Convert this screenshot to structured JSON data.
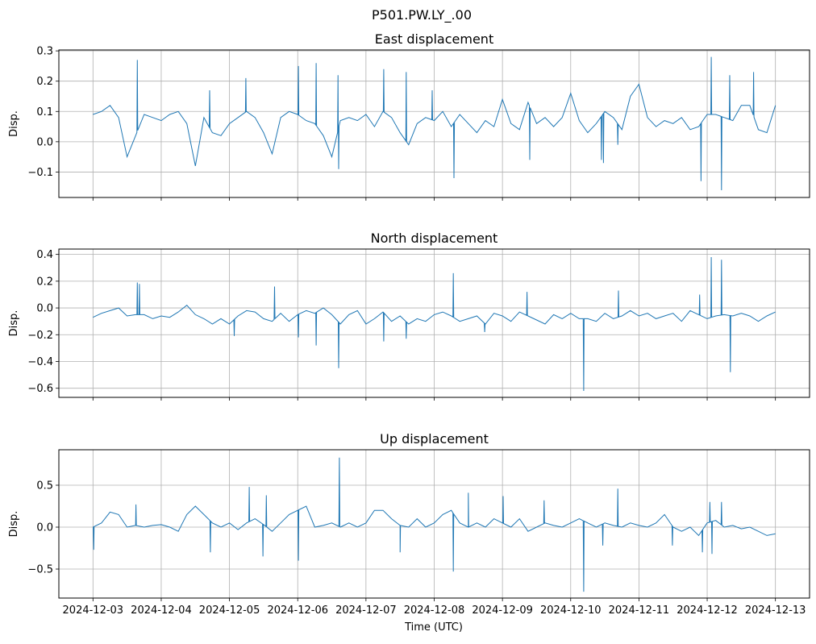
{
  "chart_data": {
    "type": "line",
    "title": "P501.PW.LY_.00",
    "xlabel": "Time (UTC)",
    "x_unit": "days since 2024-12-03 00:00 UTC",
    "xlim": [
      -0.5,
      10.5
    ],
    "x_ticks": [
      0,
      1,
      2,
      3,
      4,
      5,
      6,
      7,
      8,
      9,
      10
    ],
    "x_tick_labels": [
      "2024-12-03",
      "2024-12-04",
      "2024-12-05",
      "2024-12-06",
      "2024-12-07",
      "2024-12-08",
      "2024-12-09",
      "2024-12-10",
      "2024-12-11",
      "2024-12-12",
      "2024-12-13"
    ],
    "grid": true,
    "line_color": "#1f77b4",
    "panels": [
      {
        "title": "East displacement",
        "ylabel": "Disp.",
        "ylim": [
          -0.184,
          0.303
        ],
        "y_ticks": [
          -0.1,
          0.0,
          0.1,
          0.2,
          0.3
        ],
        "y_tick_labels": [
          "−0.1",
          "0.0",
          "0.1",
          "0.2",
          "0.3"
        ],
        "x_start": 0,
        "x_step": 0.125,
        "values": [
          0.09,
          0.1,
          0.12,
          0.08,
          -0.05,
          0.02,
          0.09,
          0.08,
          0.07,
          0.09,
          0.1,
          0.06,
          -0.08,
          0.08,
          0.03,
          0.02,
          0.06,
          0.08,
          0.1,
          0.08,
          0.03,
          -0.04,
          0.08,
          0.1,
          0.09,
          0.07,
          0.06,
          0.02,
          -0.05,
          0.07,
          0.08,
          0.07,
          0.09,
          0.05,
          0.1,
          0.08,
          0.03,
          -0.01,
          0.06,
          0.08,
          0.07,
          0.1,
          0.05,
          0.09,
          0.06,
          0.03,
          0.07,
          0.05,
          0.14,
          0.06,
          0.04,
          0.13,
          0.06,
          0.08,
          0.05,
          0.08,
          0.16,
          0.07,
          0.03,
          0.06,
          0.1,
          0.08,
          0.04,
          0.15,
          0.19,
          0.08,
          0.05,
          0.07,
          0.06,
          0.08,
          0.04,
          0.05,
          0.09,
          0.09,
          0.08,
          0.07,
          0.12,
          0.12,
          0.04,
          0.03,
          0.12
        ],
        "spikes": [
          [
            0.65,
            0.27
          ],
          [
            1.71,
            0.17
          ],
          [
            2.24,
            0.21
          ],
          [
            3.01,
            0.25
          ],
          [
            3.27,
            0.26
          ],
          [
            3.59,
            0.22
          ],
          [
            3.6,
            -0.09
          ],
          [
            4.26,
            0.24
          ],
          [
            4.59,
            0.23
          ],
          [
            4.97,
            0.17
          ],
          [
            5.29,
            -0.12
          ],
          [
            6.4,
            -0.06
          ],
          [
            7.45,
            -0.06
          ],
          [
            7.48,
            -0.07
          ],
          [
            7.69,
            -0.01
          ],
          [
            8.91,
            -0.13
          ],
          [
            9.06,
            0.28
          ],
          [
            9.21,
            -0.16
          ],
          [
            9.33,
            0.22
          ],
          [
            9.68,
            0.23
          ]
        ]
      },
      {
        "title": "North displacement",
        "ylabel": "Disp.",
        "ylim": [
          -0.668,
          0.44
        ],
        "y_ticks": [
          -0.6,
          -0.4,
          -0.2,
          0.0,
          0.2,
          0.4
        ],
        "y_tick_labels": [
          "−0.6",
          "−0.4",
          "−0.2",
          "0.0",
          "0.2",
          "0.4"
        ],
        "x_start": 0,
        "x_step": 0.125,
        "values": [
          -0.07,
          -0.04,
          -0.02,
          0.0,
          -0.06,
          -0.05,
          -0.05,
          -0.08,
          -0.06,
          -0.07,
          -0.03,
          0.02,
          -0.05,
          -0.08,
          -0.12,
          -0.08,
          -0.12,
          -0.06,
          -0.02,
          -0.03,
          -0.08,
          -0.1,
          -0.04,
          -0.1,
          -0.05,
          -0.02,
          -0.04,
          0.0,
          -0.05,
          -0.12,
          -0.05,
          -0.02,
          -0.12,
          -0.08,
          -0.03,
          -0.1,
          -0.06,
          -0.12,
          -0.08,
          -0.1,
          -0.05,
          -0.03,
          -0.06,
          -0.1,
          -0.08,
          -0.06,
          -0.12,
          -0.04,
          -0.06,
          -0.1,
          -0.03,
          -0.06,
          -0.09,
          -0.12,
          -0.05,
          -0.08,
          -0.04,
          -0.08,
          -0.08,
          -0.1,
          -0.04,
          -0.08,
          -0.06,
          -0.02,
          -0.06,
          -0.04,
          -0.08,
          -0.06,
          -0.04,
          -0.1,
          -0.02,
          -0.05,
          -0.08,
          -0.06,
          -0.05,
          -0.06,
          -0.04,
          -0.06,
          -0.1,
          -0.06,
          -0.03
        ],
        "spikes": [
          [
            0.65,
            0.19
          ],
          [
            0.68,
            0.18
          ],
          [
            2.07,
            -0.21
          ],
          [
            2.66,
            0.16
          ],
          [
            3.01,
            -0.22
          ],
          [
            3.27,
            -0.28
          ],
          [
            3.6,
            -0.45
          ],
          [
            4.26,
            -0.25
          ],
          [
            4.59,
            -0.23
          ],
          [
            5.28,
            0.26
          ],
          [
            5.74,
            -0.18
          ],
          [
            6.36,
            0.12
          ],
          [
            7.19,
            -0.62
          ],
          [
            7.7,
            0.13
          ],
          [
            8.89,
            0.1
          ],
          [
            9.06,
            0.38
          ],
          [
            9.21,
            0.36
          ],
          [
            9.34,
            -0.48
          ]
        ]
      },
      {
        "title": "Up displacement",
        "ylabel": "Disp.",
        "ylim": [
          -0.846,
          0.923
        ],
        "y_ticks": [
          -0.5,
          0.0,
          0.5
        ],
        "y_tick_labels": [
          "−0.5",
          "0.0",
          "0.5"
        ],
        "x_start": 0,
        "x_step": 0.125,
        "values": [
          0.0,
          0.05,
          0.18,
          0.15,
          0.0,
          0.02,
          0.0,
          0.02,
          0.03,
          0.0,
          -0.05,
          0.15,
          0.25,
          0.15,
          0.05,
          0.0,
          0.05,
          -0.03,
          0.05,
          0.1,
          0.03,
          -0.05,
          0.05,
          0.15,
          0.2,
          0.25,
          0.0,
          0.02,
          0.05,
          0.0,
          0.05,
          0.0,
          0.05,
          0.2,
          0.2,
          0.1,
          0.02,
          0.0,
          0.1,
          0.0,
          0.05,
          0.15,
          0.2,
          0.05,
          0.0,
          0.05,
          0.0,
          0.1,
          0.05,
          0.0,
          0.1,
          -0.05,
          0.0,
          0.05,
          0.02,
          0.0,
          0.05,
          0.1,
          0.05,
          0.0,
          0.05,
          0.02,
          0.0,
          0.05,
          0.02,
          0.0,
          0.05,
          0.15,
          0.0,
          -0.05,
          0.0,
          -0.1,
          0.05,
          0.08,
          0.0,
          0.02,
          -0.02,
          0.0,
          -0.05,
          -0.1,
          -0.08
        ],
        "spikes": [
          [
            0.01,
            -0.27
          ],
          [
            0.63,
            0.27
          ],
          [
            1.72,
            -0.3
          ],
          [
            2.29,
            0.48
          ],
          [
            2.49,
            -0.35
          ],
          [
            2.54,
            0.38
          ],
          [
            3.01,
            -0.4
          ],
          [
            3.61,
            0.83
          ],
          [
            4.5,
            -0.3
          ],
          [
            5.28,
            -0.53
          ],
          [
            5.5,
            0.41
          ],
          [
            6.01,
            0.37
          ],
          [
            6.61,
            0.32
          ],
          [
            7.19,
            -0.77
          ],
          [
            7.47,
            -0.22
          ],
          [
            7.69,
            0.46
          ],
          [
            8.49,
            -0.22
          ],
          [
            8.93,
            -0.3
          ],
          [
            9.07,
            -0.32
          ],
          [
            9.04,
            0.3
          ],
          [
            9.21,
            0.3
          ]
        ]
      }
    ]
  }
}
